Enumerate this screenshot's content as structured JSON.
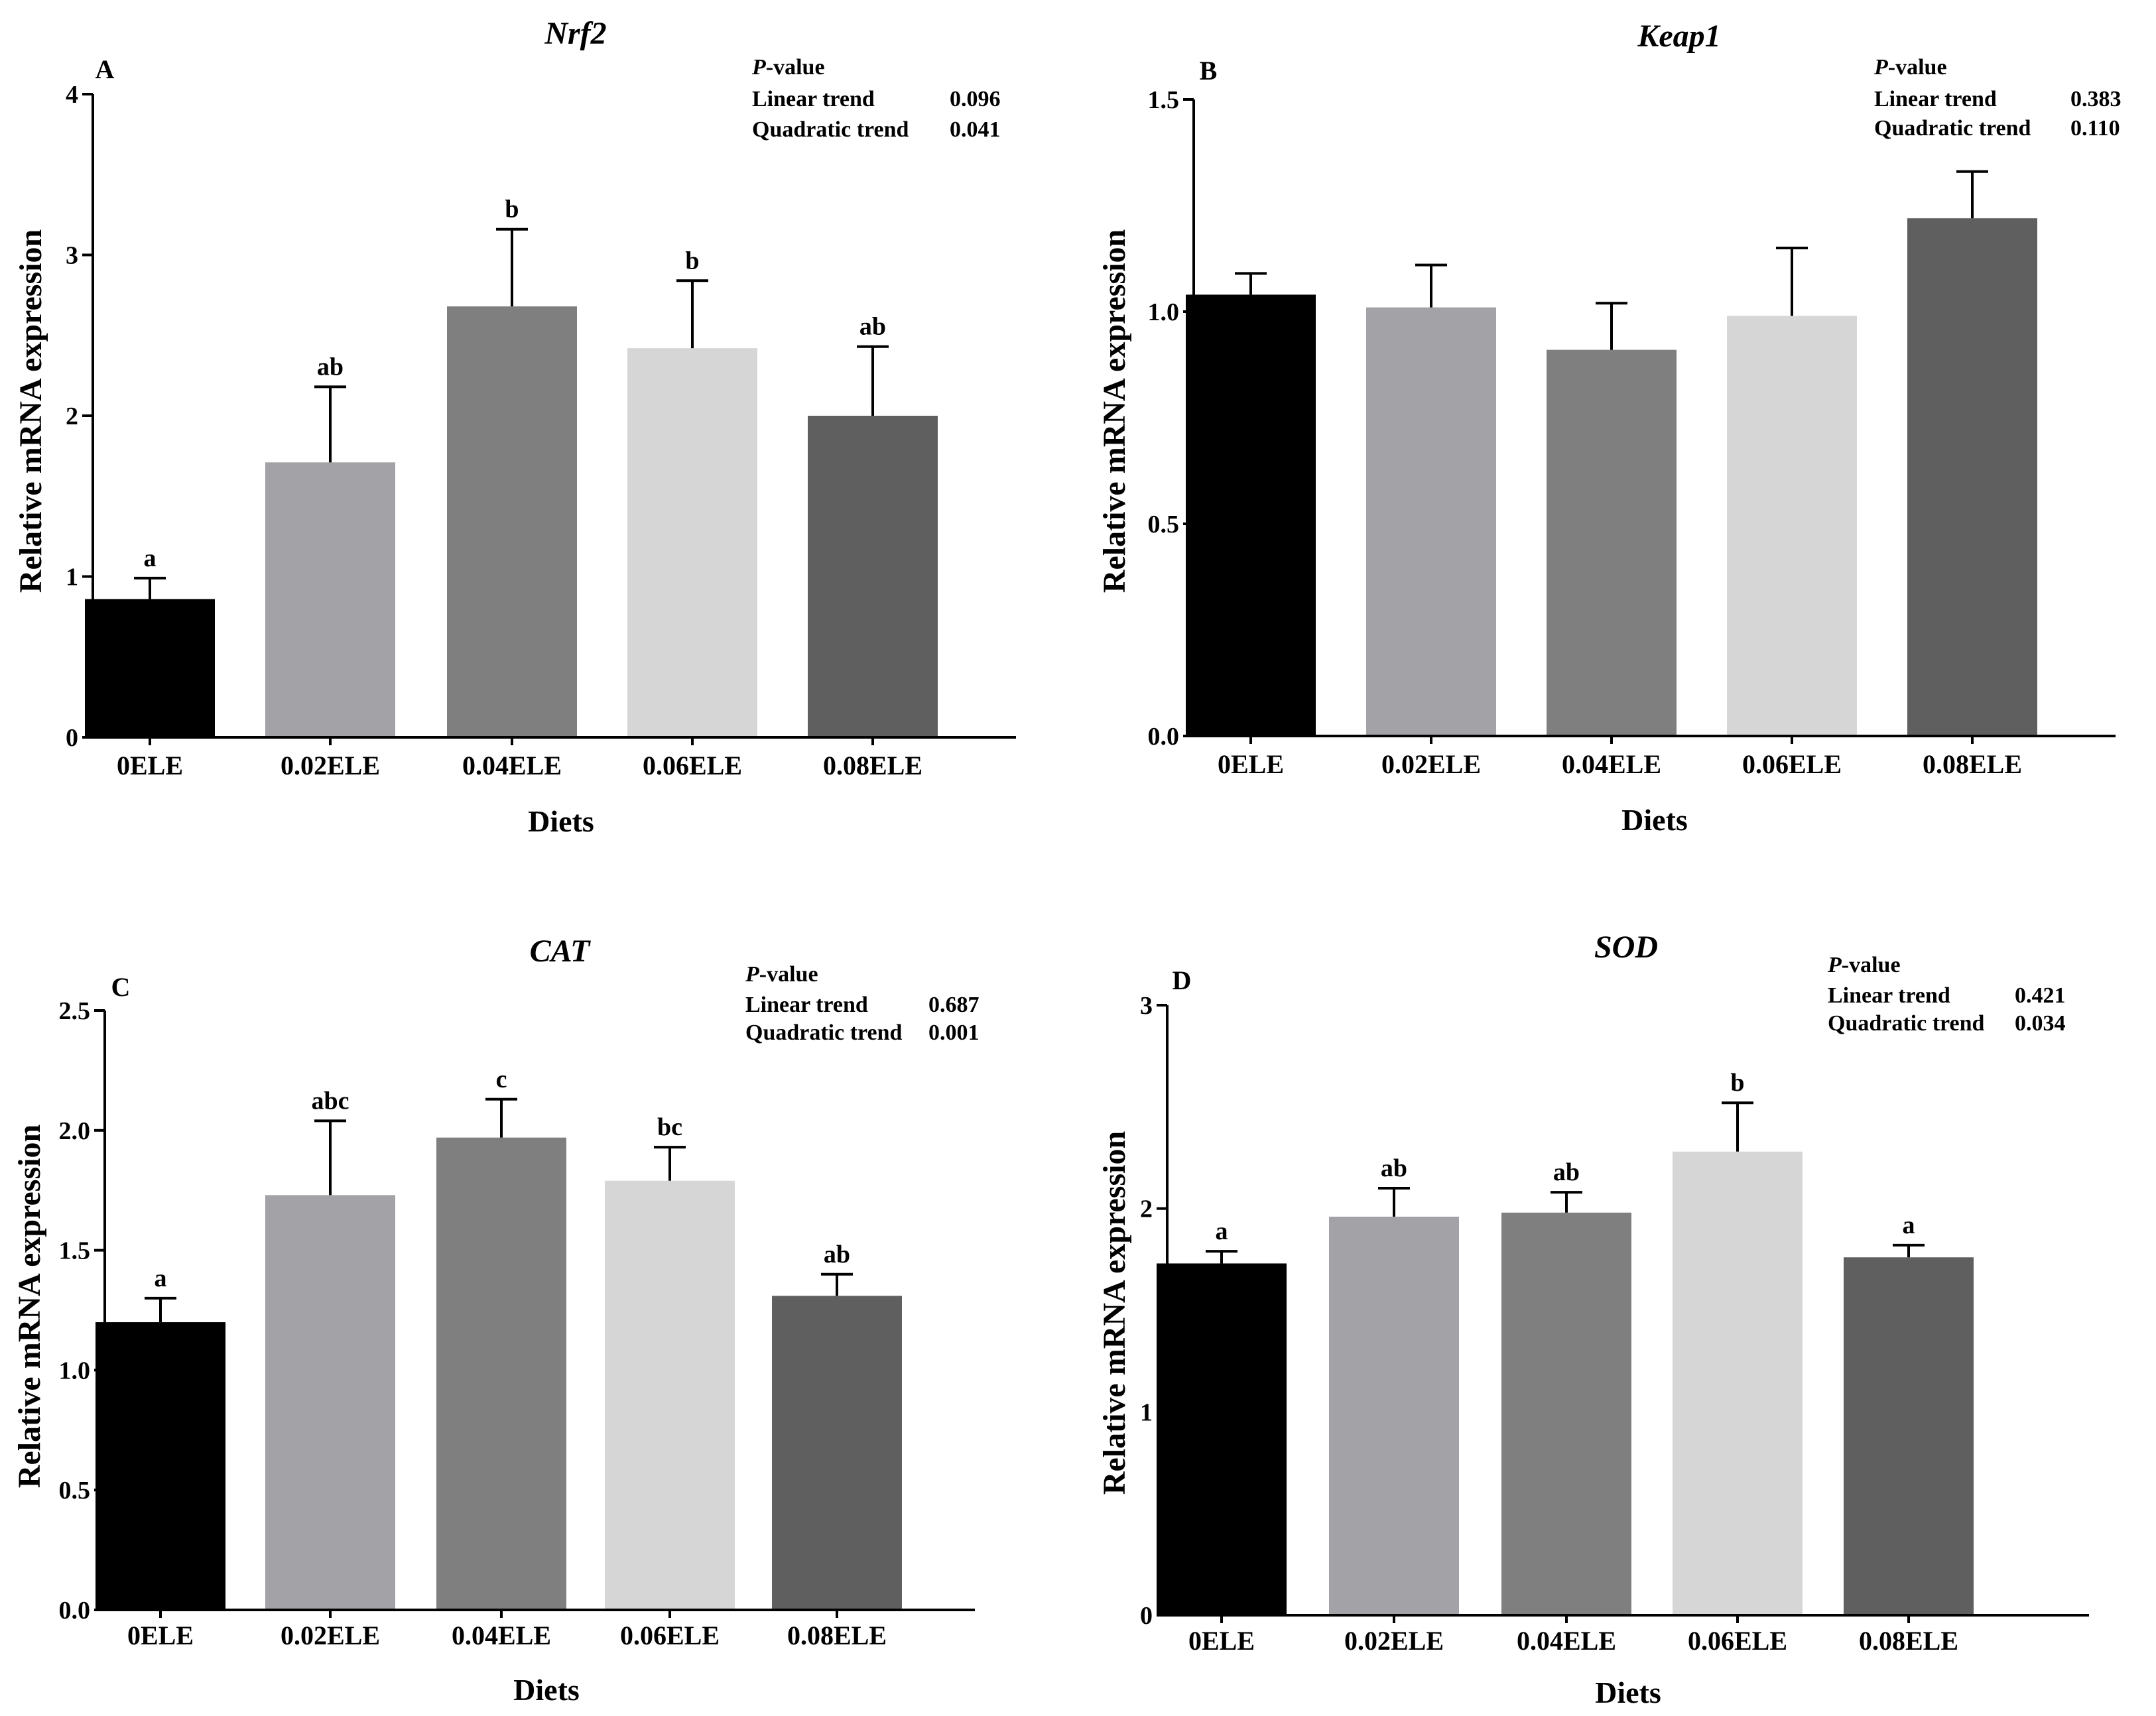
{
  "colors": {
    "bar_fills": [
      "#000000",
      "#a3a2a6",
      "#7f7f7f",
      "#d6d6d6",
      "#5f5f5f"
    ],
    "axis": "#000000"
  },
  "pvalue_header": "P-value",
  "chart_data": [
    {
      "type": "bar",
      "panel": "A",
      "title": "Nrf2",
      "xlabel": "Diets",
      "ylabel": "Relative mRNA expression",
      "categories": [
        "0ELE",
        "0.02ELE",
        "0.04ELE",
        "0.06ELE",
        "0.08ELE"
      ],
      "values": [
        0.86,
        1.71,
        2.68,
        2.42,
        2.0
      ],
      "errors": [
        0.13,
        0.47,
        0.48,
        0.42,
        0.43
      ],
      "letters": [
        "a",
        "ab",
        "b",
        "b",
        "ab"
      ],
      "ylim": [
        0,
        4
      ],
      "yticks": [
        "0",
        "1",
        "2",
        "3",
        "4"
      ],
      "pvalues": [
        {
          "label": "Linear trend",
          "value": "0.096"
        },
        {
          "label": "Quadratic trend",
          "value": "0.041"
        }
      ]
    },
    {
      "type": "bar",
      "panel": "B",
      "title": "Keap1",
      "xlabel": "Diets",
      "ylabel": "Relative mRNA expression",
      "categories": [
        "0ELE",
        "0.02ELE",
        "0.04ELE",
        "0.06ELE",
        "0.08ELE"
      ],
      "values": [
        1.04,
        1.01,
        0.91,
        0.99,
        1.22
      ],
      "errors": [
        0.05,
        0.1,
        0.11,
        0.16,
        0.11
      ],
      "letters": [
        "",
        "",
        "",
        "",
        ""
      ],
      "ylim": [
        0,
        1.5
      ],
      "yticks": [
        "0.0",
        "0.5",
        "1.0",
        "1.5"
      ],
      "pvalues": [
        {
          "label": "Linear trend",
          "value": "0.383"
        },
        {
          "label": "Quadratic trend",
          "value": "0.110"
        }
      ]
    },
    {
      "type": "bar",
      "panel": "C",
      "title": "CAT",
      "xlabel": "Diets",
      "ylabel": "Relative mRNA expression",
      "categories": [
        "0ELE",
        "0.02ELE",
        "0.04ELE",
        "0.06ELE",
        "0.08ELE"
      ],
      "values": [
        1.2,
        1.73,
        1.97,
        1.79,
        1.31
      ],
      "errors": [
        0.1,
        0.31,
        0.16,
        0.14,
        0.09
      ],
      "letters": [
        "a",
        "abc",
        "c",
        "bc",
        "ab"
      ],
      "ylim": [
        0,
        2.5
      ],
      "yticks": [
        "0.0",
        "0.5",
        "1.0",
        "1.5",
        "2.0",
        "2.5"
      ],
      "pvalues": [
        {
          "label": "Linear trend",
          "value": "0.687"
        },
        {
          "label": "Quadratic trend",
          "value": "0.001"
        }
      ]
    },
    {
      "type": "bar",
      "panel": "D",
      "title": "SOD",
      "xlabel": "Diets",
      "ylabel": "Relative mRNA expression",
      "categories": [
        "0ELE",
        "0.02ELE",
        "0.04ELE",
        "0.06ELE",
        "0.08ELE"
      ],
      "values": [
        1.73,
        1.96,
        1.98,
        2.28,
        1.76
      ],
      "errors": [
        0.06,
        0.14,
        0.1,
        0.24,
        0.06
      ],
      "letters": [
        "a",
        "ab",
        "ab",
        "b",
        "a"
      ],
      "ylim": [
        0,
        3
      ],
      "yticks": [
        "0",
        "1",
        "2",
        "3"
      ],
      "pvalues": [
        {
          "label": "Linear trend",
          "value": "0.421"
        },
        {
          "label": "Quadratic trend",
          "value": "0.034"
        }
      ]
    }
  ]
}
